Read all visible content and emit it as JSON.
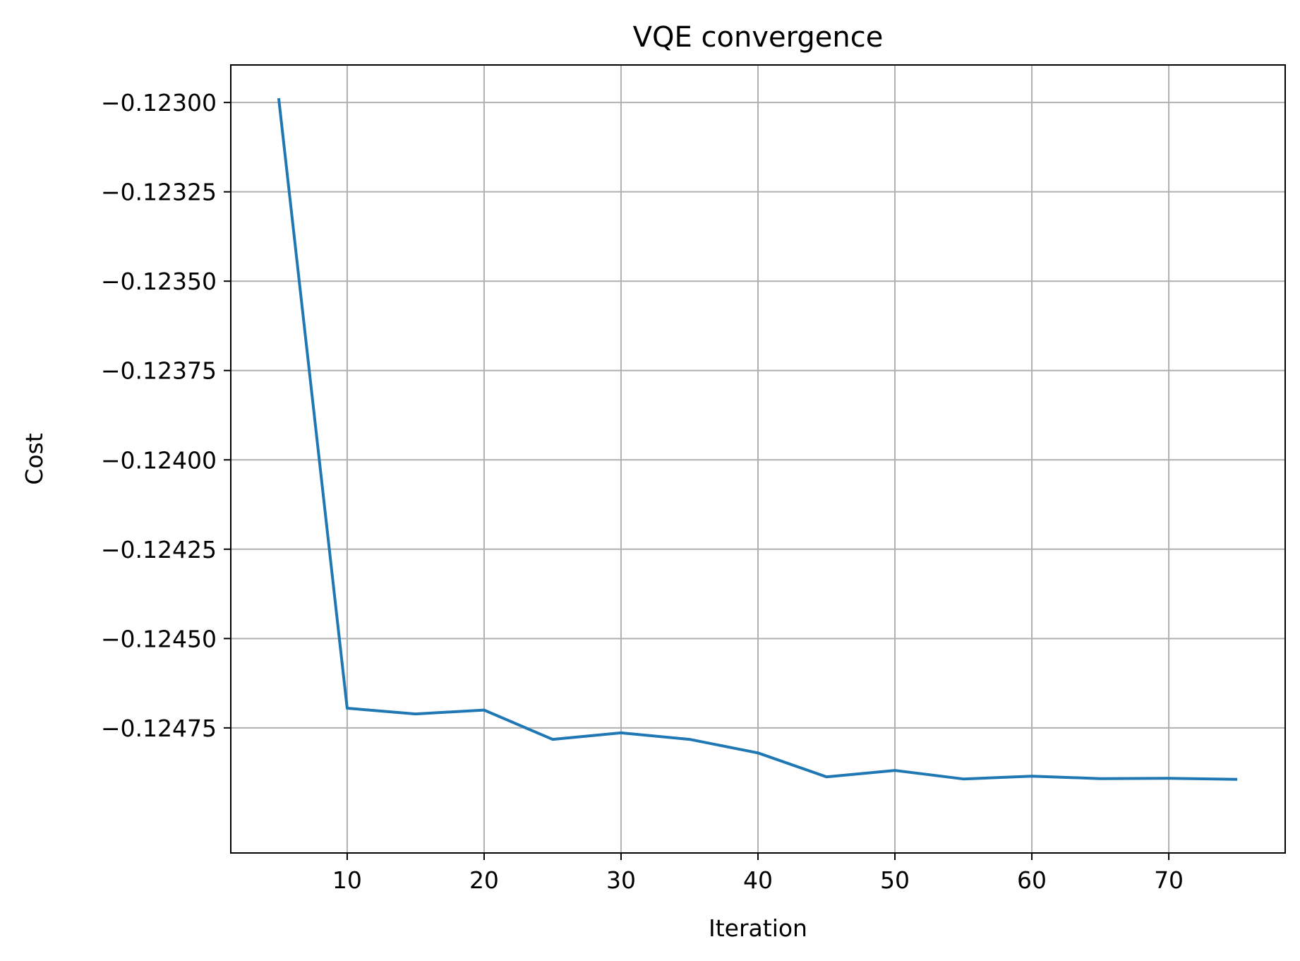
{
  "chart_data": {
    "type": "line",
    "title": "VQE convergence",
    "xlabel": "Iteration",
    "ylabel": "Cost",
    "xlim": [
      1.5,
      78.5
    ],
    "ylim": [
      -0.1251,
      -0.122895
    ],
    "x_ticks": [
      10,
      20,
      30,
      40,
      50,
      60,
      70
    ],
    "y_ticks": [
      -0.123,
      -0.12325,
      -0.1235,
      -0.12375,
      -0.124,
      -0.12425,
      -0.1245,
      -0.12475
    ],
    "y_tick_labels": [
      "−0.12300",
      "−0.12325",
      "−0.12350",
      "−0.12375",
      "−0.12400",
      "−0.12425",
      "−0.12450",
      "−0.12475"
    ],
    "grid": true,
    "series": [
      {
        "color": "#1f77b4",
        "x": [
          5,
          10,
          15,
          20,
          25,
          30,
          35,
          40,
          45,
          50,
          55,
          60,
          65,
          70,
          75
        ],
        "y": [
          -0.122988,
          -0.124695,
          -0.124711,
          -0.1247,
          -0.124782,
          -0.124764,
          -0.124782,
          -0.12482,
          -0.124887,
          -0.124869,
          -0.124893,
          -0.124885,
          -0.124892,
          -0.124891,
          -0.124894
        ]
      }
    ]
  }
}
